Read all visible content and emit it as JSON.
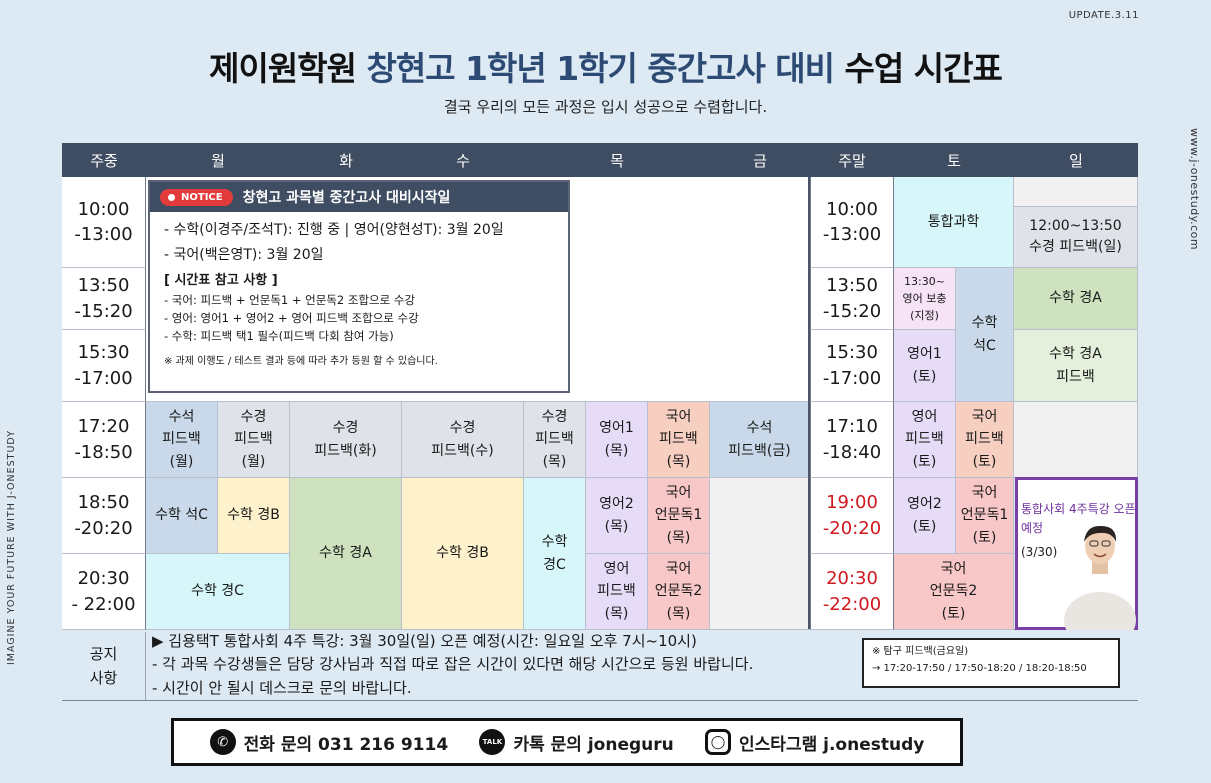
{
  "update": "UPDATE.3.11",
  "title": {
    "part1": "제이원학원 ",
    "highlight": "창현고 1학년 1학기 중간고사 대비",
    "part2": " 수업 시간표"
  },
  "subtitle": "결국 우리의 모든 과정은 입시 성공으로 수렴합니다.",
  "side_right": "www.j-onestudy.com",
  "side_left": "IMAGINE YOUR FUTURE WITH J-ONESTUDY",
  "headers": [
    "주중",
    "월",
    "화",
    "수",
    "목",
    "금",
    "주말",
    "토",
    "일"
  ],
  "times": {
    "weekday": [
      "10:00\n-13:00",
      "13:50\n-15:20",
      "15:30\n-17:00",
      "17:20\n-18:50",
      "18:50\n-20:20",
      "20:30\n- 22:00"
    ],
    "weekend": [
      "10:00\n-13:00",
      "13:50\n-15:20",
      "15:30\n-17:00",
      "17:10\n-18:40",
      "19:00\n-20:20",
      "20:30\n-22:00"
    ]
  },
  "cells": {
    "mon1": "수석\n피드백\n(월)",
    "mon2": "수경\n피드백\n(월)",
    "tue": "수경\n피드백(화)",
    "wed": "수경\n피드백(수)",
    "thu_a": "수경\n피드백\n(목)",
    "thu_b": "영어1\n(목)",
    "thu_c": "국어\n피드백\n(목)",
    "fri": "수석\n피드백(금)",
    "mon_seok_c": "수학 석C",
    "mon_gyeong_b": "수학 경B",
    "tue_gyeong_a": "수학 경A",
    "wed_gyeong_b": "수학 경B",
    "thu_gyeong_c": "수학\n경C",
    "thu_eng2": "영어2\n(목)",
    "thu_kor_read1": "국어\n언문독1\n(목)",
    "mon_gyeong_c": "수학 경C",
    "thu_eng_fb": "영어\n피드백\n(목)",
    "thu_kor_read2": "국어\n언문독2\n(목)",
    "sat_science": "통합과학",
    "sat_eng_supp": "13:30~\n영어 보충\n(지정)",
    "sat_math_seok_c": "수학\n석C",
    "sat_eng1": "영어1\n(토)",
    "sat_eng_fb": "영어\n피드백\n(토)",
    "sat_kor_fb": "국어\n피드백\n(토)",
    "sat_eng2": "영어2\n(토)",
    "sat_kor_read1": "국어\n언문독1\n(토)",
    "sat_kor_read2": "국어\n언문독2\n(토)",
    "sun_fb": "12:00~13:50\n수경 피드백(일)",
    "sun_gyeong_a": "수학 경A",
    "sun_gyeong_a_fb": "수학 경A\n피드백"
  },
  "notice": {
    "badge": "NOTICE",
    "title": "창현고 과목별 중간고사 대비시작일",
    "lines": [
      "- 수학(이경주/조석T): 진행 중 | 영어(양현성T): 3월 20일",
      "- 국어(백은영T): 3월 20일"
    ],
    "ref_title": "[ 시간표 참고 사항 ]",
    "ref_lines": [
      "- 국어: 피드백 + 언문독1 + 언문독2 조합으로 수강",
      "- 영어: 영어1 + 영어2 + 영어 피드백 조합으로 수강",
      "- 수학: 피드백 택1 필수(피드백 다회 참여 가능)"
    ],
    "footnote": "※ 과제 이행도 / 테스트 결과 등에 따라 추가 등원 할 수 있습니다."
  },
  "special": {
    "text": "통합사회 4주특강 오픈예정",
    "date": "(3/30)"
  },
  "footer": {
    "label": "공지\n사항",
    "notes": [
      "▶ 김용택T 통합사회 4주 특강: 3월 30일(일) 오픈 예정(시간: 일요일 오후 7시~10시)",
      "- 각 과목 수강생들은 담당 강사님과 직접 따로 잡은 시간이 있다면 해당 시간으로 등원 바랍니다.",
      "- 시간이 안 될시 데스크로 문의 바랍니다."
    ],
    "tamgu_title": "※ 탐구 피드백(금요일)",
    "tamgu_times": "→ 17:20-17:50 / 17:50-18:20 / 18:20-18:50"
  },
  "contact": {
    "phone": "전화 문의 031 216 9114",
    "kakao": "카톡 문의 joneguru",
    "insta": "인스타그램 j.onestudy"
  },
  "icons": {
    "phone": "phone-icon",
    "kakao": "kakaotalk-icon",
    "insta": "instagram-icon",
    "person": "instructor-photo"
  }
}
